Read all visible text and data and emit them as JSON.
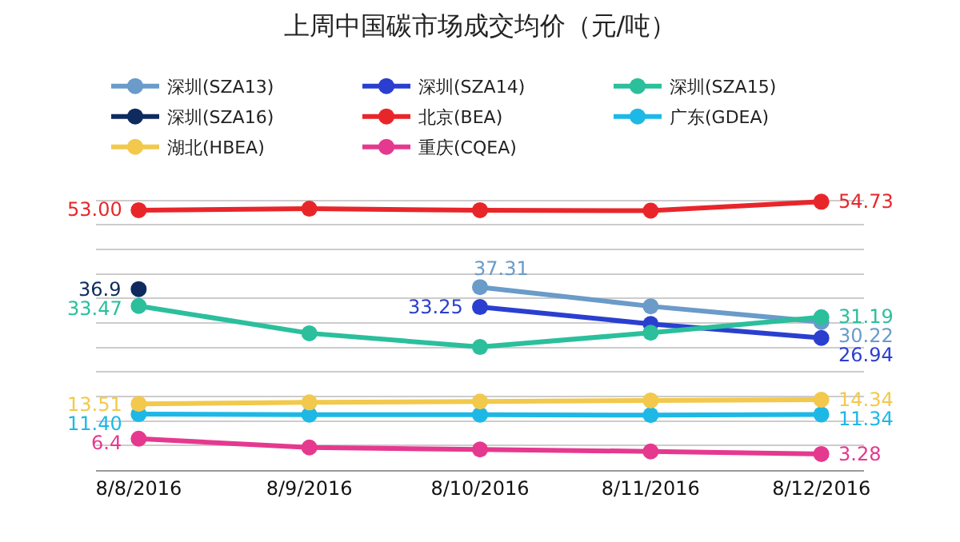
{
  "chart_data": {
    "type": "line",
    "title": "上周中国碳市场成交均价（元/吨）",
    "categories": [
      "8/8/2016",
      "8/9/2016",
      "8/10/2016",
      "8/11/2016",
      "8/12/2016"
    ],
    "series": [
      {
        "name": "深圳(SZA13)",
        "color": "#6a9bc9",
        "values": [
          null,
          null,
          37.31,
          33.4,
          30.22
        ],
        "value_labels": [
          null,
          null,
          "37.31",
          null,
          "30.22"
        ]
      },
      {
        "name": "深圳(SZA14)",
        "color": "#2a3fd0",
        "values": [
          null,
          null,
          33.25,
          29.8,
          26.94
        ],
        "value_labels": [
          null,
          null,
          "33.25",
          null,
          "26.94"
        ]
      },
      {
        "name": "深圳(SZA15)",
        "color": "#2bbf9c",
        "values": [
          33.47,
          27.9,
          25.1,
          28.0,
          31.19
        ],
        "value_labels": [
          "33.47",
          null,
          null,
          null,
          "31.19"
        ]
      },
      {
        "name": "深圳(SZA16)",
        "color": "#0e2a5e",
        "values": [
          36.9,
          null,
          null,
          null,
          null
        ],
        "value_labels": [
          "36.9",
          null,
          null,
          null,
          null
        ]
      },
      {
        "name": "北京(BEA)",
        "color": "#e8262a",
        "values": [
          53.0,
          53.3,
          53.0,
          52.9,
          54.73
        ],
        "value_labels": [
          "53.00",
          null,
          null,
          null,
          "54.73"
        ]
      },
      {
        "name": "广东(GDEA)",
        "color": "#1eb8e6",
        "values": [
          11.4,
          11.3,
          11.3,
          11.2,
          11.34
        ],
        "value_labels": [
          "11.40",
          null,
          null,
          null,
          "11.34"
        ]
      },
      {
        "name": "湖北(HBEA)",
        "color": "#f2c94c",
        "values": [
          13.51,
          13.8,
          14.0,
          14.2,
          14.34
        ],
        "value_labels": [
          "13.51",
          null,
          null,
          null,
          "14.34"
        ]
      },
      {
        "name": "重庆(CQEA)",
        "color": "#e5398f",
        "values": [
          6.4,
          4.6,
          4.2,
          3.8,
          3.28
        ],
        "value_labels": [
          "6.4",
          null,
          null,
          null,
          "3.28"
        ]
      }
    ],
    "yticks": [
      {
        "value": 0,
        "label": null
      },
      {
        "value": 5,
        "label": null
      },
      {
        "value": 10,
        "label": null
      },
      {
        "value": 15,
        "label": null
      },
      {
        "value": 20,
        "label": null
      },
      {
        "value": 25,
        "label": null
      },
      {
        "value": 30,
        "label": null
      },
      {
        "value": 35,
        "label": null
      },
      {
        "value": 40,
        "label": null
      },
      {
        "value": 45,
        "label": null
      },
      {
        "value": 50,
        "label": null
      },
      {
        "value": 55,
        "label": null
      }
    ],
    "tick_labels": "x",
    "grid": "y",
    "legend": "top",
    "marker": "circle",
    "line_style": "solid"
  }
}
